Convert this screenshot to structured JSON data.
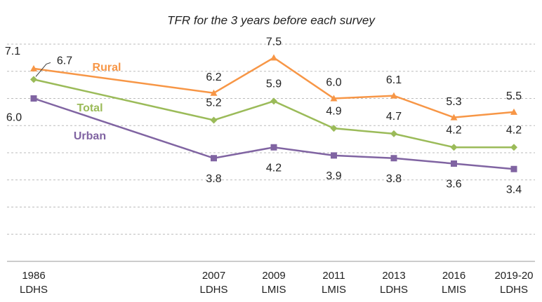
{
  "chart_data": {
    "type": "line",
    "title": "TFR for the 3 years before each survey",
    "categories": [
      "1986 LDHS",
      "2007 LDHS",
      "2009 LMIS",
      "2011 LMIS",
      "2013 LDHS",
      "2016 LMIS",
      "2019-20 LDHS"
    ],
    "series": [
      {
        "name": "Rural",
        "color": "#f79646",
        "marker": "triangle",
        "values": [
          7.1,
          6.2,
          7.5,
          6.0,
          6.1,
          5.3,
          5.5
        ]
      },
      {
        "name": "Total",
        "color": "#9bbb59",
        "marker": "diamond",
        "values": [
          6.7,
          5.2,
          5.9,
          4.9,
          4.7,
          4.2,
          4.2
        ]
      },
      {
        "name": "Urban",
        "color": "#8064a2",
        "marker": "square",
        "values": [
          6.0,
          3.8,
          4.2,
          3.9,
          3.8,
          3.6,
          3.4
        ]
      }
    ],
    "value_labels": [
      [
        "7.1",
        "6.2",
        "7.5",
        "6.0",
        "6.1",
        "5.3",
        "5.5"
      ],
      [
        "6.7",
        "5.2",
        "5.9",
        "4.9",
        "4.7",
        "4.2",
        "4.2"
      ],
      [
        "6.0",
        "3.8",
        "4.2",
        "3.9",
        "3.8",
        "3.6",
        "3.4"
      ]
    ],
    "ylim": [
      0,
      8
    ],
    "yticks": [
      0,
      1,
      2,
      3,
      4,
      5,
      6,
      7,
      8
    ],
    "grid": true
  }
}
